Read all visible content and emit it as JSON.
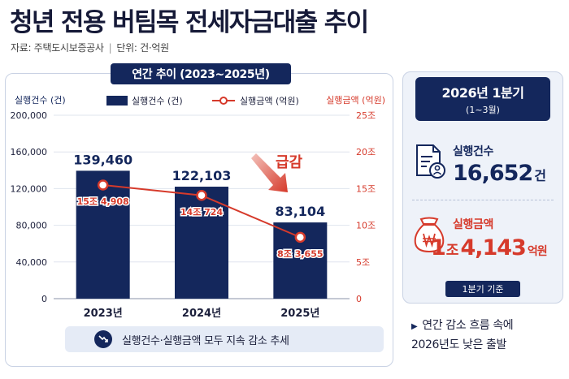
{
  "header": {
    "title": "청년 전용 버팀목 전세자금대출 추이",
    "source": "자료: 주택도시보증공사",
    "unit": "단위: 건·억원"
  },
  "panel": {
    "range_label": "연간 추이 (2023~2025년)",
    "trend_note": "실행건수·실행금액 모두 지속 감소 추세"
  },
  "chart_data": {
    "type": "bar+line",
    "categories": [
      "2023년",
      "2024년",
      "2025년"
    ],
    "series": [
      {
        "name": "실행건수 (건)",
        "kind": "bar",
        "axis": "left",
        "values": [
          139460,
          122103,
          83104
        ],
        "labels": [
          "139,460",
          "122,103",
          "83,104"
        ]
      },
      {
        "name": "실행금액 (억원)",
        "kind": "line",
        "axis": "right",
        "values": [
          15.4908,
          14.0724,
          8.3655
        ],
        "labels": [
          "15조 4,908",
          "14조 724",
          "8조 3,655"
        ]
      }
    ],
    "left_axis": {
      "label": "실행건수 (건)",
      "range": [
        0,
        200000
      ],
      "ticks": [
        0,
        40000,
        80000,
        120000,
        160000,
        200000
      ],
      "tick_labels": [
        "0",
        "40,000",
        "80,000",
        "120,000",
        "160,000",
        "200,000"
      ]
    },
    "right_axis": {
      "label": "실행금액 (억원)",
      "range": [
        0,
        25
      ],
      "ticks": [
        0,
        5,
        10,
        15,
        20,
        25
      ],
      "tick_labels": [
        "0",
        "5조",
        "10조",
        "15조",
        "20조",
        "25조"
      ]
    },
    "annotation": "급감",
    "grid": true,
    "legend": "top-center"
  },
  "side": {
    "quarter_title": "2026년 1분기",
    "quarter_sub": "(1~3월)",
    "count_label": "실행건수",
    "count_value": "16,652",
    "count_unit": "건",
    "amount_label": "실행금액",
    "amount_jo": "1",
    "amount_jo_unit": "조",
    "amount_rest": "4,143",
    "amount_unit": "억원",
    "basis": "1분기 기준",
    "note_line1": "연간 감소 흐름 속에",
    "note_line2": "2026년도 낮은 출발"
  },
  "colors": {
    "navy": "#14275c",
    "red": "#d63a2b",
    "grid": "#dfe4ee"
  }
}
